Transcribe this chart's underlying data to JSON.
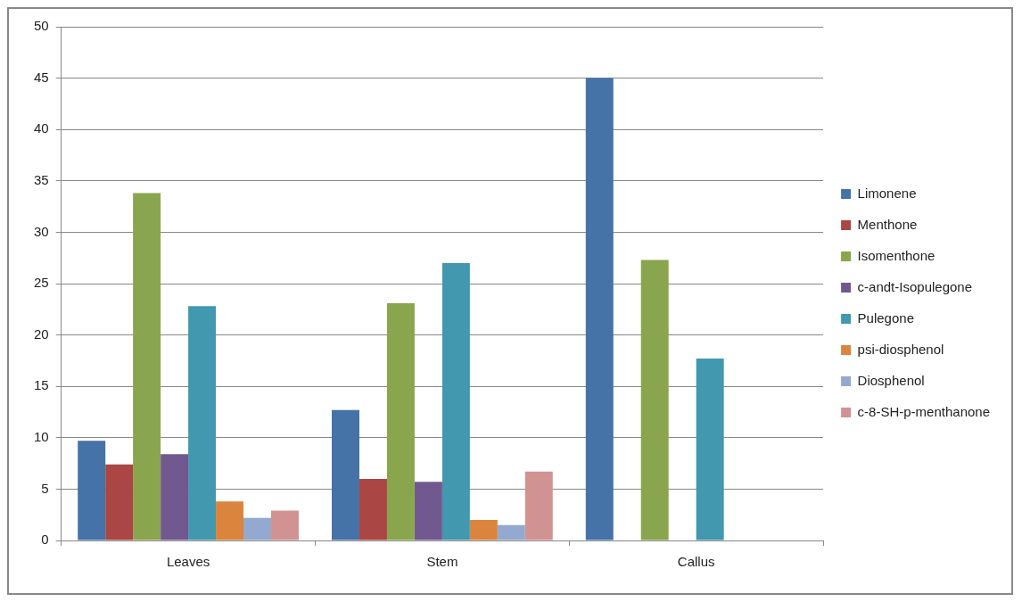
{
  "chart_data": {
    "type": "bar",
    "categories": [
      "Leaves",
      "Stem",
      "Callus"
    ],
    "series": [
      {
        "name": "Limonene",
        "color": "#4572a7",
        "values": [
          9.7,
          12.7,
          45
        ]
      },
      {
        "name": "Menthone",
        "color": "#aa4643",
        "values": [
          7.4,
          6.0,
          0
        ]
      },
      {
        "name": "Isomenthone",
        "color": "#89a54e",
        "values": [
          33.8,
          23.1,
          27.3
        ]
      },
      {
        "name": "c-andt-Isopulegone",
        "color": "#71588f",
        "values": [
          8.4,
          5.7,
          0
        ]
      },
      {
        "name": "Pulegone",
        "color": "#4198af",
        "values": [
          22.8,
          27.0,
          17.7
        ]
      },
      {
        "name": "psi-diosphenol",
        "color": "#db843d",
        "values": [
          3.8,
          2.0,
          0
        ]
      },
      {
        "name": "Diosphenol",
        "color": "#93a9cf",
        "values": [
          2.2,
          1.5,
          0
        ]
      },
      {
        "name": "c-8-SH-p-menthanone",
        "color": "#d19392",
        "values": [
          2.9,
          6.7,
          0
        ]
      }
    ],
    "ylim": [
      0,
      50
    ],
    "yticks": [
      0,
      5,
      10,
      15,
      20,
      25,
      30,
      35,
      40,
      45,
      50
    ],
    "grid": "y",
    "legend": "right"
  }
}
